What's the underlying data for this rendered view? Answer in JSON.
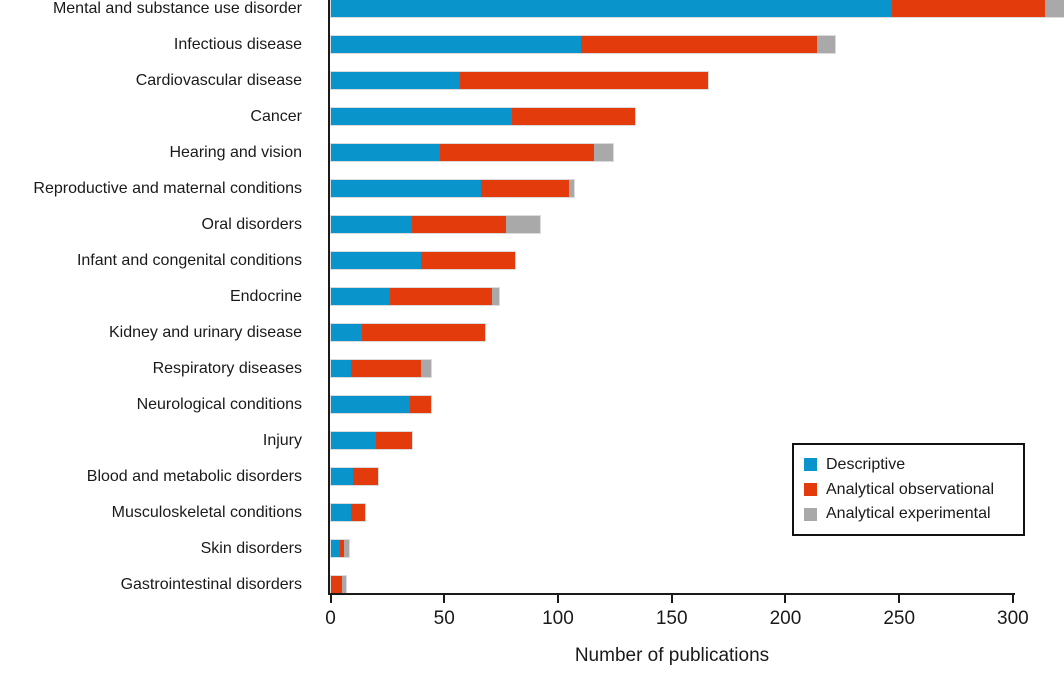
{
  "chart_data": {
    "type": "bar",
    "orientation": "horizontal",
    "stacked": true,
    "title": "",
    "xlabel": "Number of publications",
    "ylabel": "",
    "xlim": [
      0,
      300
    ],
    "xticks": [
      0,
      50,
      100,
      150,
      200,
      250,
      300
    ],
    "grid": false,
    "legend_position": "lower right",
    "axis_color": "#1a1a1a",
    "background_color": "#ffffff",
    "categories": [
      "Mental and substance use disorder",
      "Infectious disease",
      "Cardiovascular disease",
      "Cancer",
      "Hearing and vision",
      "Reproductive and maternal conditions",
      "Oral disorders",
      "Infant and congenital conditions",
      "Endocrine",
      "Kidney and urinary disease",
      "Respiratory diseases",
      "Neurological conditions",
      "Injury",
      "Blood and metabolic disorders",
      "Musculoskeletal conditions",
      "Skin disorders",
      "Gastrointestinal disorders"
    ],
    "series": [
      {
        "name": "Descriptive",
        "color": "#0995cb",
        "values": [
          247,
          110,
          57,
          80,
          48,
          66,
          36,
          40,
          26,
          14,
          9,
          35,
          20,
          10,
          9,
          4,
          0
        ]
      },
      {
        "name": "Analytical observational",
        "color": "#e43b0c",
        "values": [
          67,
          104,
          109,
          54,
          68,
          39,
          41,
          41,
          45,
          54,
          31,
          9,
          16,
          11,
          6,
          2,
          5
        ]
      },
      {
        "name": "Analytical experimental",
        "color": "#a9a9a9",
        "values": [
          9,
          8,
          0,
          0,
          8,
          2,
          15,
          0,
          3,
          0,
          4,
          0,
          0,
          0,
          0,
          2,
          2
        ]
      }
    ]
  }
}
